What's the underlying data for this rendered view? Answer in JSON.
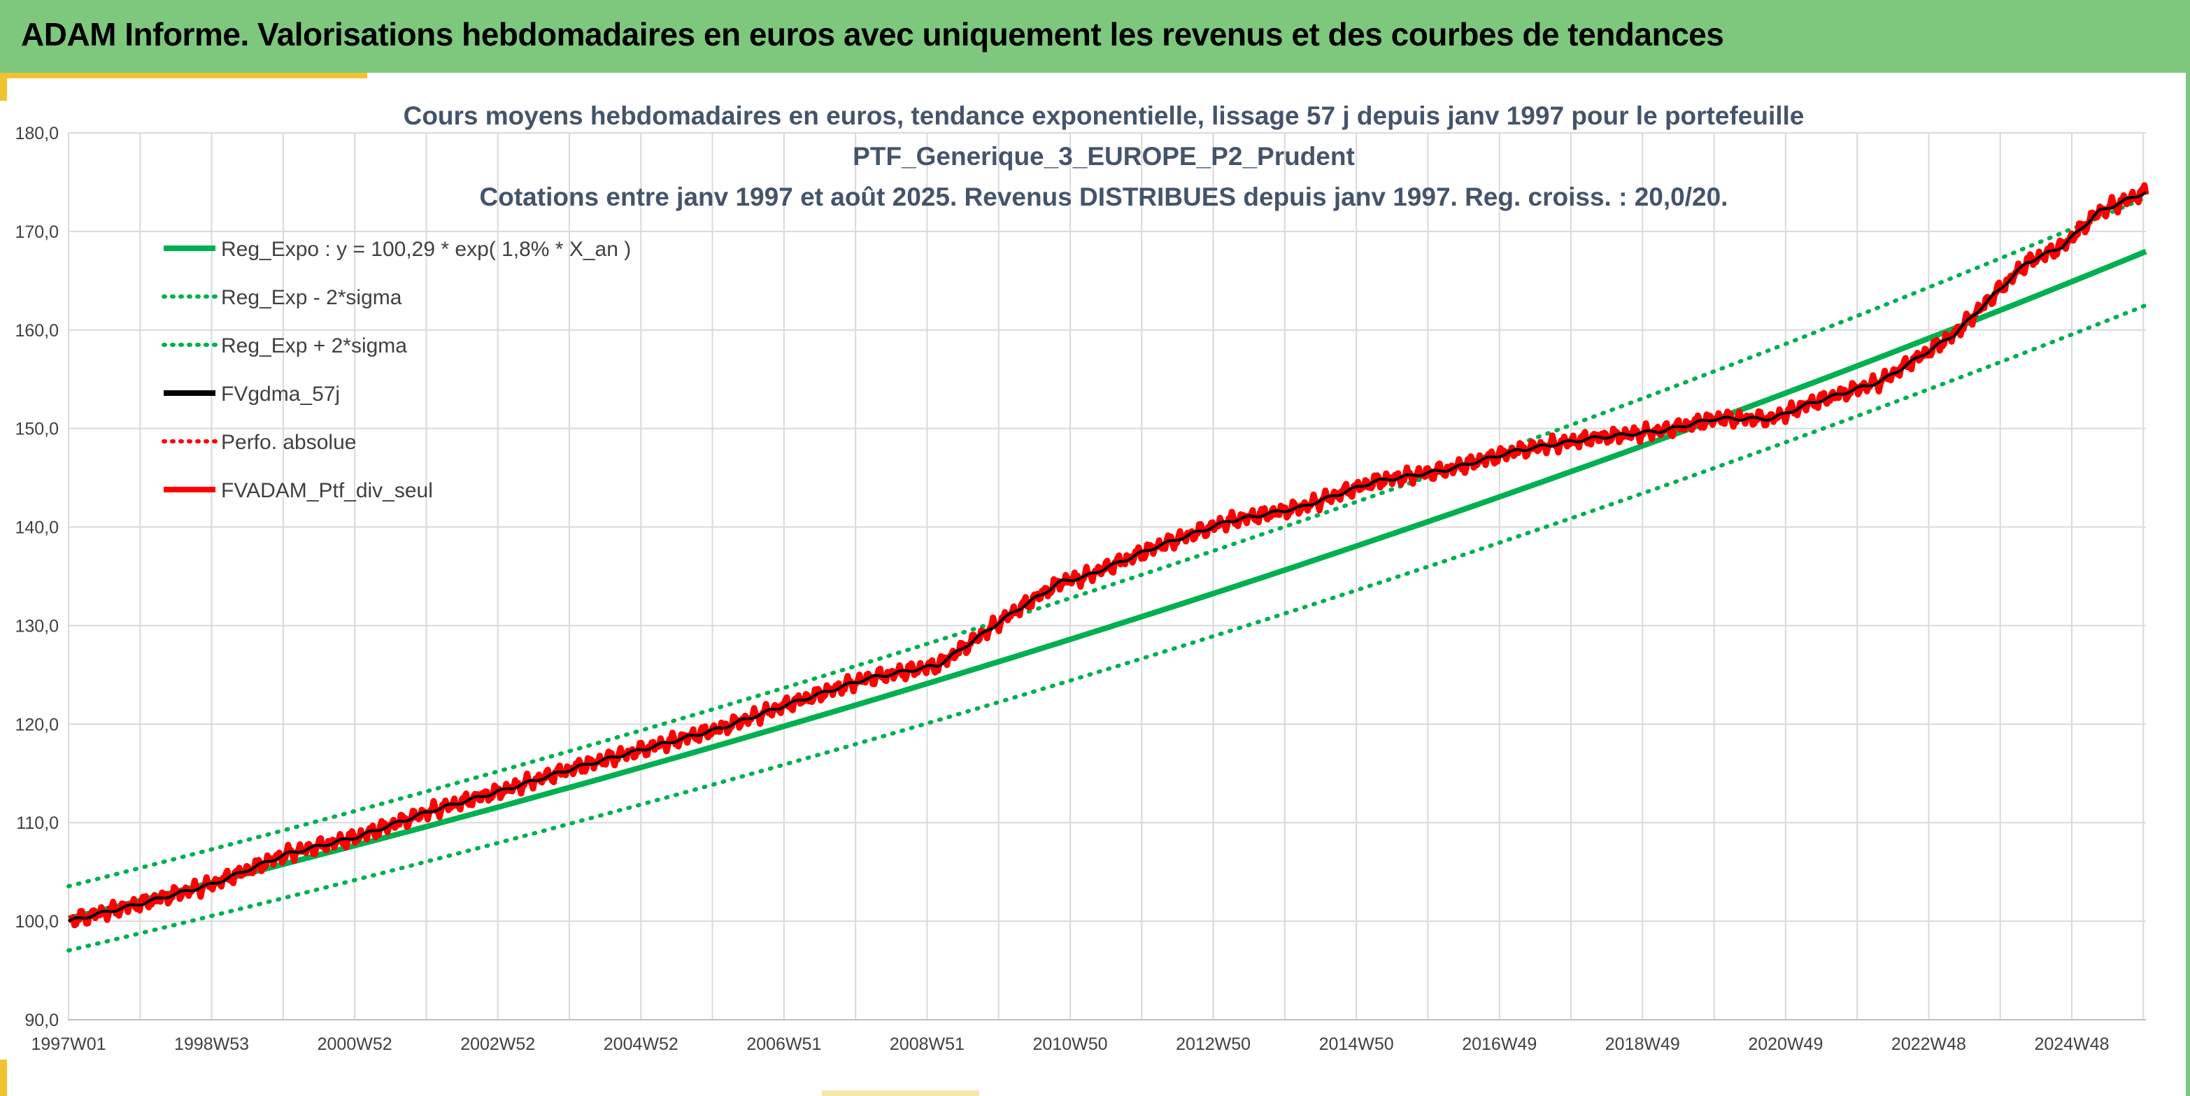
{
  "banner": {
    "title": "ADAM Informe. Valorisations hebdomadaires en euros avec uniquement les revenus et des courbes de tendances"
  },
  "colors": {
    "banner_bg": "#7ec87e",
    "accent": "#f2c230",
    "trend_green": "#00b050",
    "fv_black": "#000000",
    "perf_red": "#ff0000",
    "title_text": "#44546a",
    "grid": "#d9d9d9"
  },
  "chart_data": {
    "type": "line",
    "title_lines": [
      "Cours moyens hebdomadaires en euros, tendance exponentielle, lissage 57 j depuis janv 1997 pour le portefeuille",
      "PTF_Generique_3_EUROPE_P2_Prudent",
      "Cotations entre janv 1997 et août 2025. Revenus DISTRIBUES depuis janv 1997. Reg. croiss. : 20,0/20."
    ],
    "x_ticks": [
      "1997W01",
      "1998W53",
      "2000W52",
      "2002W52",
      "2004W52",
      "2006W51",
      "2008W51",
      "2010W50",
      "2012W50",
      "2014W50",
      "2016W49",
      "2018W49",
      "2020W49",
      "2022W48",
      "2024W48"
    ],
    "x_range_years": [
      1997.0,
      2025.65
    ],
    "ylim": [
      90,
      180
    ],
    "y_ticks": [
      "90,0",
      "100,0",
      "110,0",
      "120,0",
      "130,0",
      "140,0",
      "150,0",
      "160,0",
      "170,0",
      "180,0"
    ],
    "grid": true,
    "legend_position": "top-left",
    "regression": {
      "a": 100.29,
      "rate": 0.018,
      "sigma_band": 3.25
    },
    "legend": [
      {
        "name": "Reg_Expo : y = 100,29 * exp( 1,8% *  X_an )",
        "color": "#00b050",
        "style": "solid"
      },
      {
        "name": "Reg_Exp - 2*sigma",
        "color": "#00b050",
        "style": "dotted"
      },
      {
        "name": "Reg_Exp + 2*sigma",
        "color": "#00b050",
        "style": "dotted"
      },
      {
        "name": "FVgdma_57j",
        "color": "#000000",
        "style": "solid"
      },
      {
        "name": "Perfo. absolue",
        "color": "#ff0000",
        "style": "dotted"
      },
      {
        "name": "FVADAM_Ptf_div_seul",
        "color": "#ff0000",
        "style": "solid"
      }
    ],
    "series": [
      {
        "name": "FVADAM_Ptf_div_seul",
        "x": [
          1997.0,
          1998.0,
          1999.0,
          2000.0,
          2001.0,
          2002.0,
          2003.0,
          2004.0,
          2005.0,
          2006.0,
          2007.0,
          2008.0,
          2009.0,
          2010.0,
          2010.7,
          2011.0,
          2012.0,
          2013.0,
          2014.0,
          2015.0,
          2016.0,
          2017.0,
          2018.0,
          2019.0,
          2019.7,
          2020.5,
          2021.0,
          2022.0,
          2023.0,
          2024.0,
          2024.5,
          2025.0,
          2025.65
        ],
        "y": [
          100.0,
          101.8,
          103.8,
          106.8,
          108.6,
          111.2,
          113.3,
          115.6,
          117.6,
          119.6,
          122.2,
          124.6,
          126.0,
          131.2,
          134.5,
          134.9,
          138.0,
          140.6,
          142.0,
          144.6,
          145.8,
          147.8,
          149.0,
          149.8,
          151.0,
          151.0,
          152.5,
          154.8,
          159.5,
          166.8,
          168.5,
          172.0,
          174.0
        ]
      }
    ]
  }
}
